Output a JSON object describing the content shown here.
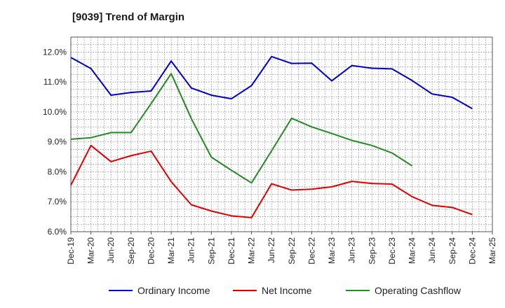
{
  "chart_data": {
    "type": "line",
    "title": "[9039]  Trend of Margin",
    "xlabel": "",
    "ylabel": "",
    "ylim": [
      6.0,
      12.5
    ],
    "yticks": [
      "6.0%",
      "7.0%",
      "8.0%",
      "9.0%",
      "10.0%",
      "11.0%",
      "12.0%"
    ],
    "x": [
      "Dec-19",
      "Mar-20",
      "Jun-20",
      "Sep-20",
      "Dec-20",
      "Mar-21",
      "Jun-21",
      "Sep-21",
      "Dec-21",
      "Mar-22",
      "Jun-22",
      "Sep-22",
      "Dec-22",
      "Mar-23",
      "Jun-23",
      "Sep-23",
      "Dec-23",
      "Mar-24",
      "Jun-24",
      "Sep-24",
      "Dec-24",
      "Mar-25"
    ],
    "grid": true,
    "legend_position": "bottom",
    "series": [
      {
        "name": "Ordinary Income",
        "color": "#0000cc",
        "values": [
          11.82,
          11.45,
          10.56,
          10.65,
          10.7,
          11.7,
          10.8,
          10.56,
          10.44,
          10.88,
          11.85,
          11.62,
          11.63,
          11.04,
          11.55,
          11.46,
          11.44,
          11.05,
          10.6,
          10.49,
          10.11,
          null
        ]
      },
      {
        "name": "Net Income",
        "color": "#e00000",
        "values": [
          7.55,
          8.88,
          8.34,
          8.54,
          8.69,
          7.67,
          6.9,
          6.69,
          6.53,
          6.47,
          7.6,
          7.39,
          7.42,
          7.5,
          7.68,
          7.61,
          7.59,
          7.17,
          6.88,
          6.81,
          6.57,
          null
        ]
      },
      {
        "name": "Operating Cashflow",
        "color": "#228b22",
        "values": [
          9.09,
          9.14,
          9.31,
          9.31,
          10.28,
          11.28,
          9.78,
          8.49,
          8.05,
          7.63,
          8.7,
          9.79,
          9.5,
          9.28,
          9.05,
          8.88,
          8.63,
          8.2,
          null,
          null,
          null,
          null
        ]
      }
    ]
  }
}
